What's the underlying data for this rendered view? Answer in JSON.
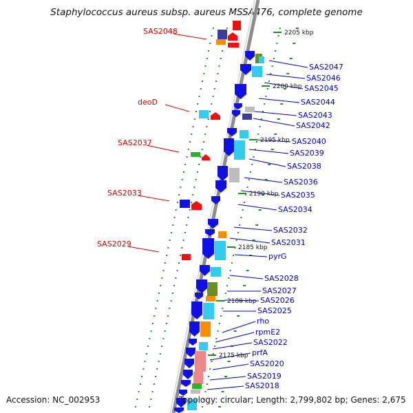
{
  "title": "Staphylococcus aureus subsp. aureus MSSA476, complete genome",
  "footer": {
    "accession": "Accession: NC_002953",
    "topology": "Topology: circular; Length: 2,799,802 bp; Genes: 2,675"
  },
  "colors": {
    "backbone": "#8c8c8c",
    "tick_dot": "#228b22",
    "label_left": "#d40000",
    "label_right": "#0000c8",
    "blue": "#1010e6",
    "cyan": "#33ccee",
    "red": "#ee1111",
    "green": "#22b822",
    "orange": "#ff8c00",
    "olive": "#6b8e23",
    "gray": "#bcbcbc",
    "navy": "#3c3c9c",
    "pink": "#ee8888"
  },
  "scale_labels": [
    "2205 kbp",
    "2200 kbp",
    "2195 kbp",
    "2190 kbp",
    "2185 kbp",
    "2180 kbp",
    "2175 kbp"
  ],
  "left_labels": [
    "SAS2048",
    "deoD",
    "SAS2037",
    "SAS2033",
    "SAS2029"
  ],
  "right_labels": [
    "SAS2047",
    "SAS2046",
    "SAS2045",
    "SAS2044",
    "SAS2043",
    "SAS2042",
    "SAS2040",
    "SAS2039",
    "SAS2038",
    "SAS2036",
    "SAS2035",
    "SAS2034",
    "SAS2032",
    "SAS2031",
    "pyrG",
    "SAS2028",
    "SAS2027",
    "SAS2026",
    "SAS2025",
    "rho",
    "rpmE2",
    "SAS2022",
    "prfA",
    "SAS2020",
    "SAS2019",
    "SAS2018"
  ]
}
